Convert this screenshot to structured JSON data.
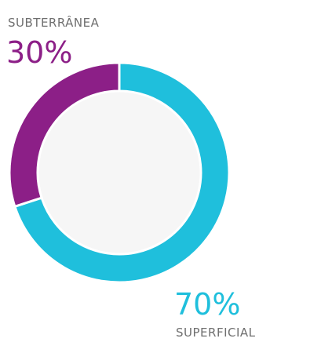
{
  "chart_data": {
    "type": "donut",
    "categories": [
      "SUBTERRÂNEA",
      "SUPERFICIAL"
    ],
    "values": [
      30,
      70
    ],
    "value_labels": [
      "30%",
      "70%"
    ],
    "colors": [
      "#8c1f87",
      "#1fbfdc"
    ]
  }
}
